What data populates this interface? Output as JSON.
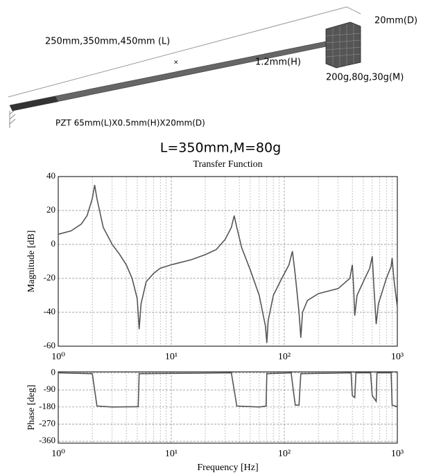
{
  "diagram": {
    "length_label": "250mm,350mm,450mm (L)",
    "depth_label": "20mm(D)",
    "height_label": "1.2mm(H)",
    "mass_label": "200g,80g,30g(M)",
    "pzt_label": "PZT  65mm(L)X0.5mm(H)X20mm(D)"
  },
  "figure_title": "L=350mm,M=80g",
  "chart_data": [
    {
      "type": "line",
      "title": "Transfer Function",
      "ylabel": "Magnitude [dB]",
      "log_x": true,
      "grid": true,
      "color": "#555555",
      "xlim": [
        1,
        1000
      ],
      "xticks": [
        {
          "value": 1,
          "label": "10⁰"
        },
        {
          "value": 10,
          "label": "10¹"
        },
        {
          "value": 100,
          "label": "10²"
        },
        {
          "value": 1000,
          "label": "10³"
        }
      ],
      "ylim": [
        -60,
        40
      ],
      "yticks": [
        -60,
        -40,
        -20,
        0,
        20,
        40
      ],
      "x": [
        1,
        1.3,
        1.6,
        1.8,
        2.0,
        2.1,
        2.2,
        2.5,
        3,
        3.5,
        4,
        4.5,
        5,
        5.2,
        5.4,
        6,
        7,
        8,
        10,
        15,
        20,
        25,
        30,
        34,
        36,
        38,
        42,
        50,
        60,
        68,
        70,
        72,
        80,
        95,
        110,
        118,
        125,
        135,
        140,
        145,
        160,
        200,
        300,
        380,
        400,
        410,
        420,
        440,
        500,
        570,
        600,
        620,
        650,
        680,
        800,
        880,
        900,
        930,
        1000
      ],
      "values": [
        6,
        8,
        12,
        17,
        27,
        35,
        27,
        10,
        0,
        -6,
        -12,
        -20,
        -32,
        -50,
        -35,
        -22,
        -17,
        -14,
        -12,
        -9,
        -6,
        -3,
        3,
        10,
        17,
        10,
        -2,
        -15,
        -30,
        -48,
        -58,
        -45,
        -30,
        -20,
        -12,
        -4,
        -18,
        -40,
        -55,
        -40,
        -33,
        -29,
        -26,
        -20,
        -12,
        -25,
        -42,
        -30,
        -22,
        -14,
        -7,
        -25,
        -47,
        -35,
        -20,
        -13,
        -8,
        -20,
        -37
      ]
    },
    {
      "type": "line",
      "xlabel": "Frequency [Hz]",
      "ylabel": "Phase [deg]",
      "log_x": true,
      "grid": true,
      "color": "#555555",
      "xlim": [
        1,
        1000
      ],
      "xticks": [
        {
          "value": 1,
          "label": "10⁰"
        },
        {
          "value": 10,
          "label": "10¹"
        },
        {
          "value": 100,
          "label": "10²"
        },
        {
          "value": 1000,
          "label": "10³"
        }
      ],
      "ylim": [
        -370,
        5
      ],
      "yticks": [
        -360,
        -270,
        -180,
        -90,
        0
      ],
      "x": [
        1,
        2.0,
        2.1,
        2.2,
        3,
        5.1,
        5.2,
        34,
        36,
        38,
        60,
        69,
        70,
        115,
        120,
        125,
        135,
        140,
        390,
        400,
        420,
        430,
        580,
        600,
        650,
        660,
        880,
        900,
        1000
      ],
      "values": [
        0,
        -5,
        -90,
        -175,
        -180,
        -178,
        -5,
        0,
        -90,
        -175,
        -180,
        -175,
        -5,
        0,
        -90,
        -170,
        -170,
        -5,
        0,
        -120,
        -130,
        0,
        0,
        -120,
        -150,
        0,
        0,
        -170,
        -178
      ]
    }
  ]
}
